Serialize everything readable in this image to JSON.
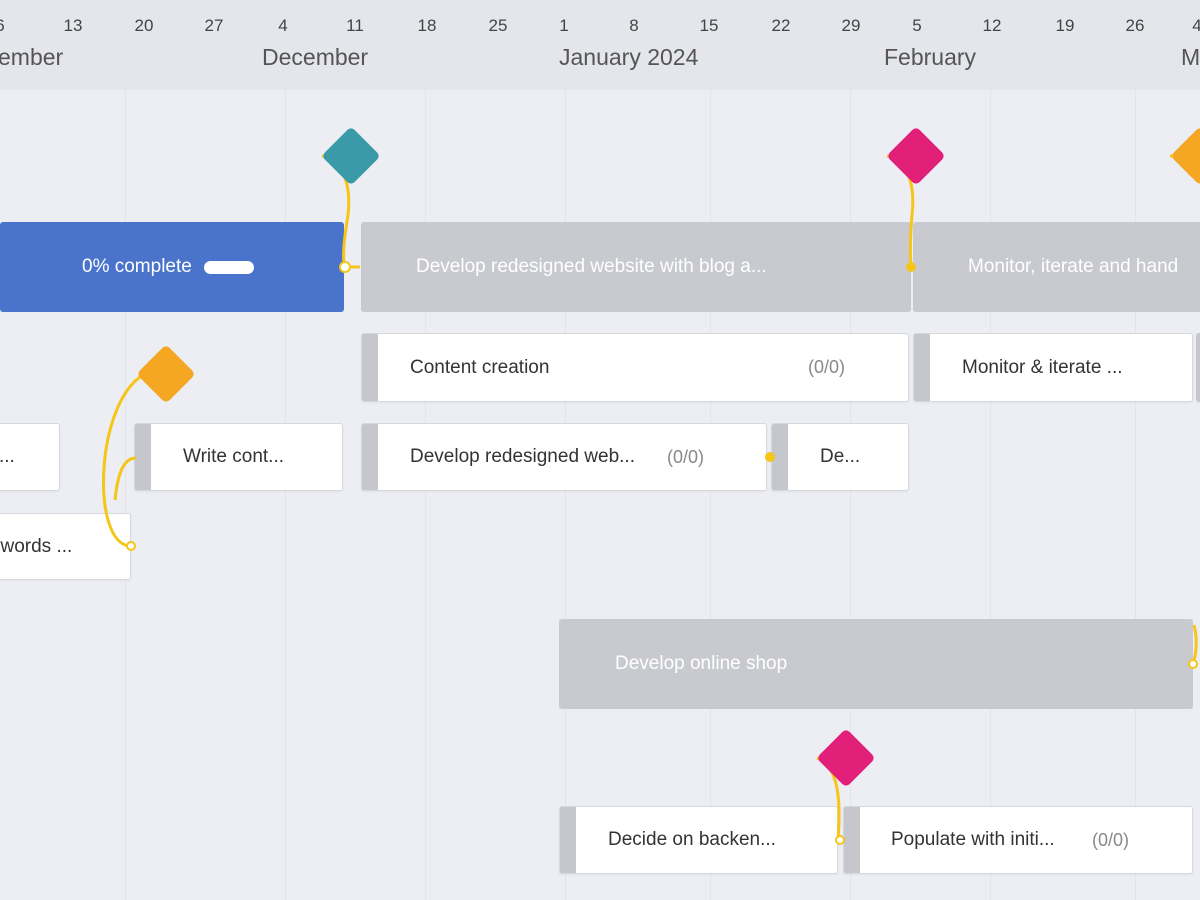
{
  "timeline": {
    "days": [
      "6",
      "13",
      "20",
      "27",
      "4",
      "11",
      "18",
      "25",
      "1",
      "8",
      "15",
      "22",
      "29",
      "5",
      "12",
      "19",
      "26",
      "4"
    ],
    "months": [
      "ember",
      "December",
      "January 2024",
      "February",
      "M"
    ]
  },
  "colors": {
    "milestone_teal": "#3a9aa8",
    "milestone_pink": "#e21f79",
    "milestone_orange": "#f5a623",
    "summary_blue": "#4a74cc",
    "summary_grey": "#c8cad0",
    "connector": "#f5c518"
  },
  "bars": {
    "phase1": {
      "label": "0% complete",
      "progress_percent": 0
    },
    "redesign_phase": {
      "label": "Develop redesigned website with blog a..."
    },
    "monitor_phase": {
      "label": "Monitor, iterate and hand"
    },
    "content_creation": {
      "label": "Content creation",
      "count": "(0/0)"
    },
    "monitor_iterate": {
      "label": "Monitor & iterate ..."
    },
    "task_left_ellipsis": {
      "label": "..."
    },
    "write_content": {
      "label": "Write cont..."
    },
    "develop_redesigned_web": {
      "label": "Develop redesigned web...",
      "count": "(0/0)"
    },
    "de_task": {
      "label": "De..."
    },
    "keywords": {
      "label": "ywords ..."
    },
    "online_shop": {
      "label": "Develop online shop"
    },
    "decide_backend": {
      "label": "Decide on backen..."
    },
    "populate": {
      "label": "Populate with initi...",
      "count": "(0/0)"
    }
  }
}
